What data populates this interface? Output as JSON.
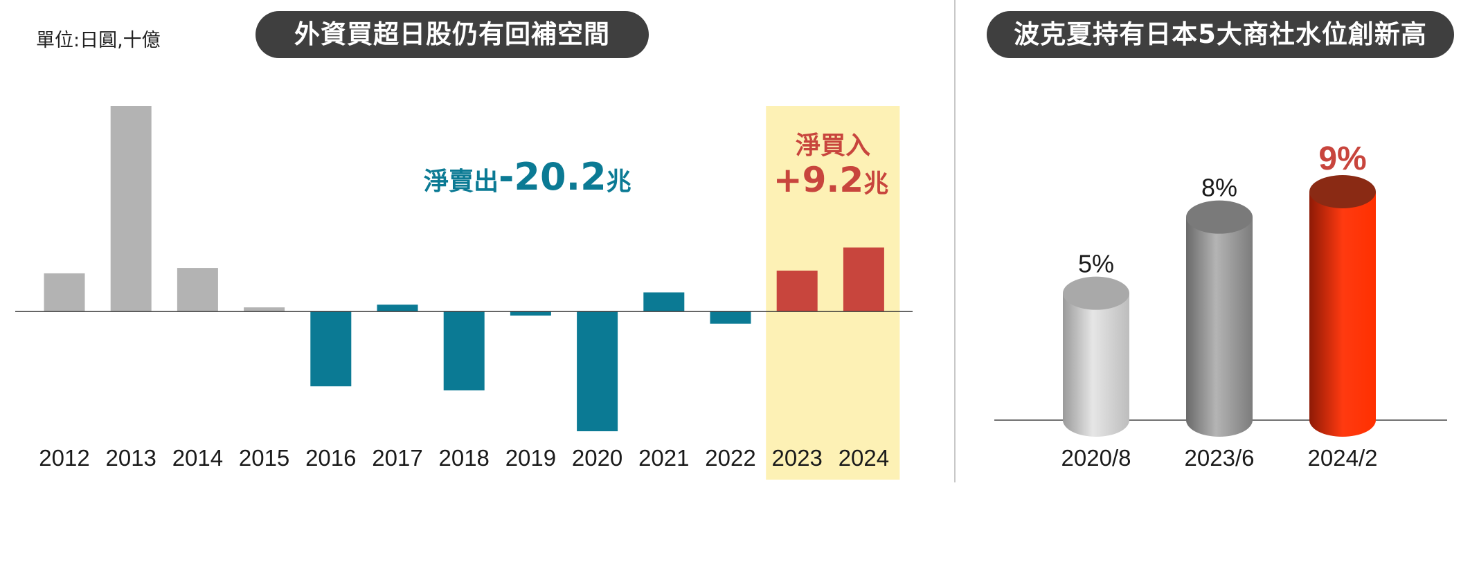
{
  "unit_label": "單位:日圓,十億",
  "left_title": "外資買超日股仍有回補空間",
  "right_title": "波克夏持有日本5大商社水位創新高",
  "annotations": {
    "sell_prefix": "淨賣出",
    "sell_value": "-20.2",
    "sell_suffix": "兆",
    "buy_line1": "淨買入",
    "buy_value": "+9.2",
    "buy_suffix": "兆"
  },
  "colors": {
    "gray": "#b3b3b3",
    "teal": "#0b7a94",
    "red": "#c8453d",
    "highlight": "#fdf1b5",
    "pill": "#3f3f3f"
  },
  "chart_data": [
    {
      "type": "bar",
      "title": "外資買超日股仍有回補空間",
      "ylabel": "單位:日圓,十億",
      "categories": [
        "2012",
        "2013",
        "2014",
        "2015",
        "2016",
        "2017",
        "2018",
        "2019",
        "2020",
        "2021",
        "2022",
        "2023",
        "2024"
      ],
      "values": [
        2800,
        15100,
        3200,
        300,
        -5500,
        500,
        -5800,
        -300,
        -8800,
        1400,
        -900,
        3000,
        4700
      ],
      "highlighted_categories": [
        "2023",
        "2024"
      ],
      "ylim": [
        -11000,
        15100
      ],
      "grid": false
    },
    {
      "type": "bar",
      "title": "波克夏持有日本5大商社水位創新高",
      "categories": [
        "2020/8",
        "2023/6",
        "2024/2"
      ],
      "values": [
        5,
        8,
        9
      ],
      "labels": [
        "5%",
        "8%",
        "9%"
      ],
      "unit": "%",
      "grid": false
    }
  ]
}
